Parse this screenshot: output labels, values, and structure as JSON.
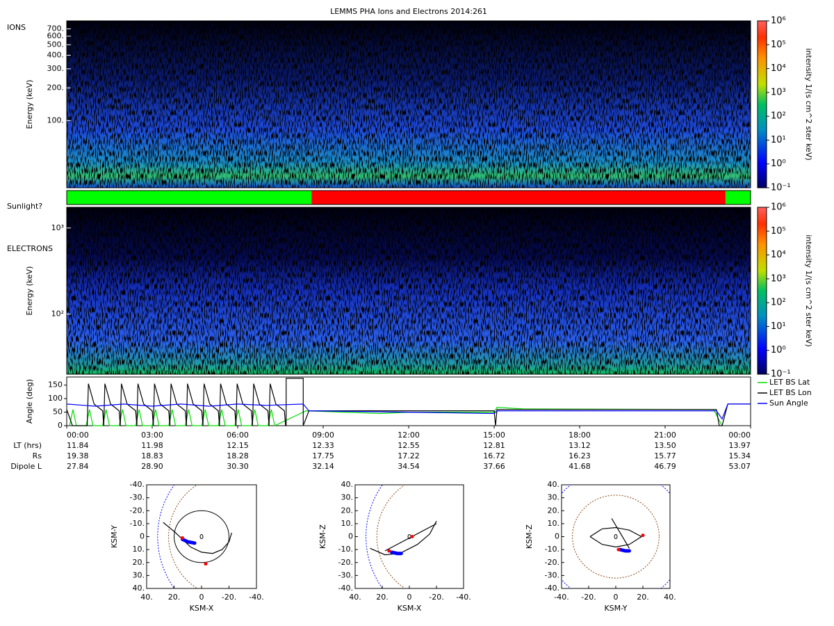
{
  "title": "LEMMS PHA Ions and Electrons  2014:261",
  "chart_data": [
    {
      "type": "spectrogram",
      "label": "IONS",
      "y_label": "Energy (keV)",
      "log": true,
      "ylim": [
        24,
        830
      ],
      "yticks": [
        {
          "value": 100,
          "label": "100."
        },
        {
          "value": 200,
          "label": "200."
        },
        {
          "value": 300,
          "label": "300."
        },
        {
          "value": 400,
          "label": "400."
        },
        {
          "value": 500,
          "label": "500."
        },
        {
          "value": 600,
          "label": "600."
        },
        {
          "value": 700,
          "label": "700."
        }
      ],
      "colorbar": {
        "label": "intensity 1/(s cm^2 ster keV)",
        "log": true,
        "lim": [
          0.1,
          1000000
        ],
        "ticks": [
          {
            "value": 0.1,
            "label": "10⁻¹"
          },
          {
            "value": 1,
            "label": "10⁰"
          },
          {
            "value": 10,
            "label": "10¹"
          },
          {
            "value": 100,
            "label": "10²"
          },
          {
            "value": 1000,
            "label": "10³"
          },
          {
            "value": 10000,
            "label": "10⁴"
          },
          {
            "value": 100000,
            "label": "10⁵"
          },
          {
            "value": 1000000,
            "label": "10⁶"
          }
        ]
      }
    },
    {
      "type": "timeline",
      "label": "Sunlight?",
      "xlim": [
        0,
        24
      ],
      "segments": [
        {
          "start": 0,
          "end": 8.59,
          "color": "#00ff00"
        },
        {
          "start": 8.59,
          "end": 23.12,
          "color": "#ff0000"
        },
        {
          "start": 23.12,
          "end": 24,
          "color": "#00ff00"
        }
      ]
    },
    {
      "type": "spectrogram",
      "label": "ELECTRONS",
      "y_label": "Energy (keV)",
      "log": true,
      "ylim": [
        20,
        1740
      ],
      "yticks": [
        {
          "value": 100,
          "label": "10²"
        },
        {
          "value": 1000,
          "label": "10³"
        }
      ],
      "colorbar": {
        "label": "intensity 1/(s cm^2 ster keV)",
        "log": true,
        "lim": [
          0.1,
          1000000
        ],
        "ticks": [
          {
            "value": 0.1,
            "label": "10⁻¹"
          },
          {
            "value": 1,
            "label": "10⁰"
          },
          {
            "value": 10,
            "label": "10¹"
          },
          {
            "value": 100,
            "label": "10²"
          },
          {
            "value": 1000,
            "label": "10³"
          },
          {
            "value": 10000,
            "label": "10⁴"
          },
          {
            "value": 100000,
            "label": "10⁵"
          },
          {
            "value": 1000000,
            "label": "10⁶"
          }
        ]
      }
    },
    {
      "type": "line",
      "y_label": "Angle (deg)",
      "xlim": [
        0,
        24
      ],
      "ylim": [
        0,
        180
      ],
      "yticks": [
        0,
        50,
        100,
        150
      ],
      "xticks": [
        {
          "value": 0,
          "label": "00:00"
        },
        {
          "value": 3,
          "label": "03:00"
        },
        {
          "value": 6,
          "label": "06:00"
        },
        {
          "value": 9,
          "label": "09:00"
        },
        {
          "value": 12,
          "label": "12:00"
        },
        {
          "value": 15,
          "label": "15:00"
        },
        {
          "value": 18,
          "label": "18:00"
        },
        {
          "value": 21,
          "label": "21:00"
        },
        {
          "value": 24,
          "label": "00:00"
        }
      ],
      "legend": "right",
      "series": [
        {
          "name": "LET BS Lat",
          "color": "#00dd00",
          "x": [
            0.1,
            0.22,
            0.34,
            0.68,
            0.8,
            0.92,
            1.26,
            1.38,
            1.5,
            1.84,
            1.96,
            2.08,
            2.42,
            2.54,
            2.66,
            3.0,
            3.12,
            3.24,
            3.58,
            3.7,
            3.82,
            4.16,
            4.28,
            4.4,
            4.74,
            4.86,
            4.98,
            5.32,
            5.44,
            5.56,
            5.9,
            6.02,
            6.14,
            6.48,
            6.6,
            6.72,
            7.06,
            7.18,
            7.3,
            8.4,
            11,
            12,
            15,
            15.1,
            16,
            22.7,
            23.0
          ],
          "values": [
            0,
            60,
            0,
            0,
            60,
            0,
            0,
            60,
            0,
            0,
            60,
            0,
            0,
            60,
            0,
            0,
            60,
            0,
            0,
            60,
            0,
            0,
            60,
            0,
            0,
            60,
            0,
            0,
            60,
            0,
            0,
            60,
            0,
            0,
            60,
            0,
            0,
            60,
            0,
            55,
            45,
            50,
            50,
            68,
            62,
            60,
            0
          ]
        },
        {
          "name": "LET BS Lon",
          "color": "#000000",
          "x": [
            0,
            0.2,
            0.72,
            0.76,
            0.96,
            1.26,
            1.3,
            1.34,
            1.54,
            1.84,
            1.88,
            1.92,
            2.12,
            2.42,
            2.46,
            2.5,
            2.7,
            3.0,
            3.04,
            3.08,
            3.28,
            3.58,
            3.62,
            3.66,
            3.86,
            4.16,
            4.2,
            4.24,
            4.44,
            4.74,
            4.78,
            4.82,
            5.02,
            5.32,
            5.36,
            5.4,
            5.6,
            5.9,
            5.94,
            5.98,
            6.18,
            6.48,
            6.52,
            6.56,
            6.76,
            7.06,
            7.1,
            7.14,
            7.34,
            7.64,
            7.68,
            7.7,
            7.7,
            8.3,
            8.3,
            8.5,
            12,
            15,
            15.05,
            15.1,
            22.8,
            22.9,
            23.0,
            23.2,
            24
          ],
          "values": [
            60,
            0,
            0,
            155,
            80,
            55,
            0,
            155,
            80,
            55,
            0,
            155,
            80,
            55,
            0,
            155,
            80,
            55,
            0,
            155,
            80,
            55,
            0,
            155,
            80,
            55,
            0,
            155,
            80,
            55,
            0,
            155,
            80,
            55,
            0,
            155,
            80,
            55,
            0,
            155,
            80,
            55,
            0,
            155,
            80,
            55,
            0,
            155,
            80,
            55,
            0,
            0,
            175,
            175,
            0,
            55,
            55,
            55,
            0,
            60,
            60,
            0,
            0,
            80,
            80
          ]
        },
        {
          "name": "Sun Angle",
          "color": "#0000ff",
          "x": [
            0,
            1,
            2,
            3,
            4,
            5,
            6,
            7,
            8.3,
            8.5,
            12,
            15,
            15.1,
            22.8,
            23.0,
            23.2,
            24
          ],
          "values": [
            80,
            72,
            80,
            72,
            80,
            72,
            80,
            75,
            80,
            55,
            50,
            45,
            55,
            55,
            25,
            80,
            80
          ]
        }
      ],
      "ephemeris": [
        {
          "label": "LT (hrs)",
          "values": [
            "11.84",
            "11.98",
            "12.15",
            "12.33",
            "12.55",
            "12.81",
            "13.12",
            "13.50",
            "13.97"
          ]
        },
        {
          "label": "Rs",
          "values": [
            "19.38",
            "18.83",
            "18.28",
            "17.75",
            "17.22",
            "16.72",
            "16.23",
            "15.77",
            "15.34"
          ]
        },
        {
          "label": "Dipole L",
          "values": [
            "27.84",
            "28.90",
            "30.30",
            "32.14",
            "34.54",
            "37.66",
            "41.68",
            "46.79",
            "53.07"
          ]
        }
      ]
    },
    {
      "type": "orbit",
      "x_label": "KSM-X",
      "y_label": "KSM-Y",
      "xlim": [
        40,
        -40
      ],
      "ylim": [
        40,
        -40
      ],
      "xticks": [
        {
          "value": 40,
          "label": "40."
        },
        {
          "value": 20,
          "label": "20."
        },
        0,
        {
          "value": -20,
          "label": "-20."
        },
        {
          "value": -40,
          "label": "-40."
        }
      ],
      "yticks": [
        {
          "value": -40,
          "label": "-40."
        },
        {
          "value": -30,
          "label": "-30."
        },
        {
          "value": -20,
          "label": "-20."
        },
        {
          "value": -10,
          "label": "-10."
        },
        0,
        {
          "value": 10,
          "label": "10."
        },
        {
          "value": 20,
          "label": "20."
        },
        {
          "value": 30,
          "label": "30."
        },
        {
          "value": 40,
          "label": "40."
        }
      ],
      "circles": [
        {
          "cx": -25,
          "cy": 0,
          "r": 49,
          "color": "#8b4513",
          "dashed": true
        },
        {
          "cx": -40,
          "cy": 0,
          "r": 72,
          "color": "#0000ff",
          "dashed": true
        },
        {
          "cx": 0,
          "cy": 0,
          "r": 20,
          "color": "#000000",
          "dashed": false
        }
      ],
      "track": {
        "color": "#000000",
        "x": [
          28,
          20,
          14,
          8,
          0,
          -8,
          -15,
          -20,
          -22
        ],
        "y": [
          -11,
          -4,
          2,
          8,
          12,
          13,
          10,
          4,
          -3
        ]
      },
      "highlight": {
        "color": "#0000ff",
        "x": [
          14,
          10,
          5
        ],
        "y": [
          2,
          4,
          5
        ]
      },
      "markers": {
        "color": "#ff0000",
        "x": [
          14,
          -3
        ],
        "y": [
          1,
          21
        ]
      }
    },
    {
      "type": "orbit",
      "x_label": "KSM-X",
      "y_label": "KSM-Z",
      "xlim": [
        40,
        -40
      ],
      "ylim": [
        -40,
        40
      ],
      "xticks": [
        {
          "value": 40,
          "label": "40."
        },
        {
          "value": 20,
          "label": "20."
        },
        0,
        {
          "value": -20,
          "label": "-20."
        },
        {
          "value": -40,
          "label": "-40."
        }
      ],
      "yticks": [
        {
          "value": -40,
          "label": "-40."
        },
        {
          "value": -30,
          "label": "-30."
        },
        {
          "value": -20,
          "label": "-20."
        },
        {
          "value": -10,
          "label": "-10."
        },
        0,
        {
          "value": 10,
          "label": "10."
        },
        {
          "value": 20,
          "label": "20."
        },
        {
          "value": 30,
          "label": "30."
        },
        {
          "value": 40,
          "label": "40."
        }
      ],
      "circles": [
        {
          "cx": -25,
          "cy": 0,
          "r": 49,
          "color": "#8b4513",
          "dashed": true
        },
        {
          "cx": -40,
          "cy": 0,
          "r": 72,
          "color": "#0000ff",
          "dashed": true
        }
      ],
      "track": {
        "color": "#000000",
        "x": [
          29,
          18,
          7,
          -6,
          -15,
          -20,
          null,
          18,
          -20
        ],
        "y": [
          -9,
          -14,
          -13,
          -6,
          2,
          12,
          null,
          -11,
          10
        ]
      },
      "highlight": {
        "color": "#0000ff",
        "x": [
          13,
          9,
          6
        ],
        "y": [
          -12,
          -13,
          -13
        ]
      },
      "markers": {
        "color": "#ff0000",
        "x": [
          15,
          -2
        ],
        "y": [
          -11,
          0
        ]
      }
    },
    {
      "type": "orbit",
      "x_label": "KSM-Y",
      "y_label": "KSM-Z",
      "xlim": [
        -40,
        40
      ],
      "ylim": [
        -40,
        40
      ],
      "xticks": [
        {
          "value": -40,
          "label": "-40."
        },
        {
          "value": -20,
          "label": "-20."
        },
        0,
        {
          "value": 20,
          "label": "20."
        },
        {
          "value": 40,
          "label": "40."
        }
      ],
      "yticks": [
        {
          "value": -40,
          "label": "-40."
        },
        {
          "value": -30,
          "label": "-30."
        },
        {
          "value": -20,
          "label": "-20."
        },
        {
          "value": -10,
          "label": "-10."
        },
        0,
        {
          "value": 10,
          "label": "10."
        },
        {
          "value": 20,
          "label": "20."
        },
        {
          "value": 30,
          "label": "30."
        },
        {
          "value": 40,
          "label": "40."
        }
      ],
      "circles": [
        {
          "cx": 0,
          "cy": 0,
          "r": 32,
          "color": "#8b4513",
          "dashed": true
        },
        {
          "cx": 0,
          "cy": 0,
          "r": 52,
          "color": "#0000ff",
          "dashed": true
        }
      ],
      "track": {
        "color": "#000000",
        "x": [
          -19,
          -10,
          0,
          10,
          19,
          10,
          0,
          -10,
          -19,
          null,
          -3,
          10
        ],
        "y": [
          0,
          6,
          7,
          5,
          0,
          -6,
          -8,
          -6,
          0,
          null,
          14,
          -9
        ]
      },
      "highlight": {
        "color": "#0000ff",
        "x": [
          3,
          7,
          10
        ],
        "y": [
          -10,
          -11,
          -11
        ]
      },
      "markers": {
        "color": "#ff0000",
        "x": [
          2,
          20
        ],
        "y": [
          -10,
          1
        ]
      }
    }
  ]
}
